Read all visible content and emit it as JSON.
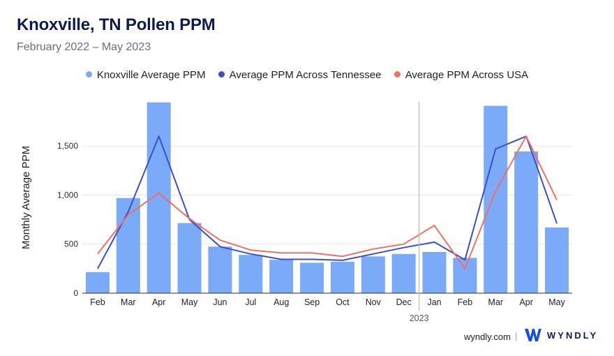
{
  "header": {
    "title": "Knoxville, TN Pollen PPM",
    "subtitle": "February 2022 – May 2023"
  },
  "legend": {
    "items": [
      {
        "label": "Knoxville Average PPM",
        "color": "#7aaaf8"
      },
      {
        "label": "Average PPM Across Tennessee",
        "color": "#3b4fc9"
      },
      {
        "label": "Average PPM Across USA",
        "color": "#ee7163"
      }
    ]
  },
  "chart_data": {
    "type": "bar",
    "title": "Knoxville, TN Pollen PPM",
    "ylabel": "Monthly Average PPM",
    "xlabel": "",
    "ylim": [
      0,
      1950
    ],
    "yticks": [
      0,
      500,
      1000,
      1500
    ],
    "ytick_labels": [
      "0",
      "500",
      "1,000",
      "1,500"
    ],
    "categories": [
      "Feb",
      "Mar",
      "Apr",
      "May",
      "Jun",
      "Jul",
      "Aug",
      "Sep",
      "Oct",
      "Nov",
      "Dec",
      "Jan",
      "Feb",
      "Mar",
      "Apr",
      "May"
    ],
    "year_marker": {
      "label": "2023",
      "before_index": 11
    },
    "series": [
      {
        "name": "Knoxville Average PPM",
        "type": "bar",
        "color": "#7aaaf8",
        "values": [
          215,
          970,
          1945,
          715,
          475,
          390,
          340,
          310,
          320,
          375,
          400,
          420,
          360,
          1910,
          1445,
          670
        ]
      },
      {
        "name": "Average PPM Across Tennessee",
        "type": "line",
        "color": "#3b4fc9",
        "values": [
          250,
          830,
          1600,
          750,
          475,
          400,
          345,
          345,
          335,
          400,
          465,
          520,
          340,
          1470,
          1600,
          710
        ]
      },
      {
        "name": "Average PPM Across USA",
        "type": "line",
        "color": "#ee7163",
        "values": [
          400,
          800,
          1020,
          760,
          540,
          440,
          410,
          410,
          375,
          450,
          500,
          690,
          250,
          1040,
          1600,
          950
        ]
      }
    ]
  },
  "footer": {
    "url": "wyndly.com",
    "separator": "|",
    "brand": "WYNDLY"
  }
}
